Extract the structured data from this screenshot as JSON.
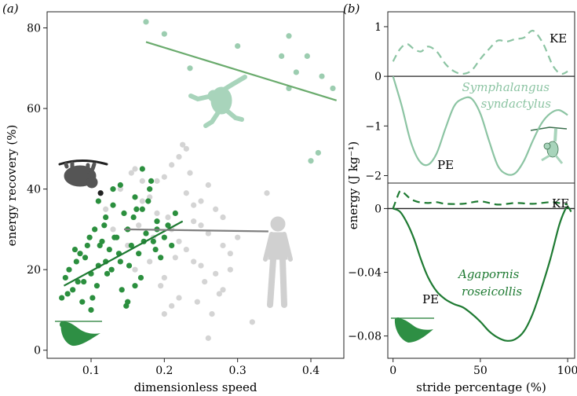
{
  "chart_data": [
    {
      "type": "scatter",
      "panel_label": "(a)",
      "xlabel": "dimensionless speed",
      "ylabel": "energy recovery (%)",
      "xlim": [
        0.04,
        0.445
      ],
      "ylim": [
        -2,
        84
      ],
      "xticks": [
        0.1,
        0.2,
        0.3,
        0.4
      ],
      "xtick_labels": [
        "0.1",
        "0.2",
        "0.3",
        "0.4"
      ],
      "yticks": [
        0,
        20,
        40,
        60,
        80
      ],
      "ytick_labels": [
        "0",
        "20",
        "40",
        "60",
        "80"
      ],
      "colors": {
        "gibbon": "#9ccdb0",
        "gibbon_line": "#6aab6d",
        "parrot": "#2b8f3e",
        "parrot_line": "#1e7a32",
        "human": "#d4d4d4",
        "human_line": "#808080",
        "sloth": "#222222"
      },
      "series": [
        {
          "name": "gibbon (Symphalangus syndactylus)",
          "x": [
            0.175,
            0.2,
            0.235,
            0.3,
            0.37,
            0.38,
            0.395,
            0.415,
            0.43,
            0.37,
            0.41,
            0.4,
            0.36
          ],
          "y": [
            81.5,
            78.5,
            70,
            75.5,
            78,
            69,
            73,
            68,
            65,
            65,
            49,
            47,
            73
          ]
        },
        {
          "name": "parrot (Agapornis roseicollis)",
          "x": [
            0.06,
            0.065,
            0.07,
            0.075,
            0.08,
            0.085,
            0.09,
            0.095,
            0.1,
            0.105,
            0.11,
            0.115,
            0.12,
            0.125,
            0.13,
            0.135,
            0.14,
            0.145,
            0.15,
            0.155,
            0.16,
            0.165,
            0.17,
            0.175,
            0.18,
            0.185,
            0.19,
            0.195,
            0.2,
            0.205,
            0.068,
            0.078,
            0.088,
            0.098,
            0.108,
            0.118,
            0.128,
            0.138,
            0.148,
            0.158,
            0.168,
            0.178,
            0.188,
            0.082,
            0.092,
            0.102,
            0.112,
            0.122,
            0.132,
            0.142,
            0.152,
            0.162,
            0.172,
            0.182,
            0.11,
            0.13,
            0.15,
            0.17,
            0.19,
            0.12,
            0.14,
            0.16,
            0.1,
            0.21,
            0.215
          ],
          "y": [
            13,
            18,
            20,
            15,
            22,
            24,
            17,
            26,
            19,
            30,
            21,
            27,
            33,
            25,
            36,
            28,
            22,
            34,
            30,
            26,
            38,
            24,
            35,
            29,
            40,
            27,
            32,
            23,
            28,
            31,
            14,
            25,
            12,
            28,
            16,
            31,
            20,
            24,
            11,
            33,
            18,
            37,
            25,
            17,
            23,
            13,
            26,
            19,
            28,
            15,
            21,
            35,
            27,
            42,
            37,
            40,
            12,
            45,
            30,
            22,
            41,
            16,
            10,
            26,
            34
          ]
        },
        {
          "name": "human",
          "x": [
            0.12,
            0.14,
            0.16,
            0.18,
            0.2,
            0.22,
            0.24,
            0.26,
            0.28,
            0.3,
            0.13,
            0.15,
            0.17,
            0.19,
            0.21,
            0.23,
            0.25,
            0.27,
            0.29,
            0.16,
            0.18,
            0.2,
            0.22,
            0.24,
            0.26,
            0.28,
            0.19,
            0.21,
            0.23,
            0.25,
            0.27,
            0.225,
            0.235,
            0.245,
            0.255,
            0.265,
            0.275,
            0.205,
            0.215,
            0.185,
            0.195,
            0.34,
            0.32,
            0.23,
            0.26,
            0.17,
            0.2,
            0.24,
            0.28,
            0.25,
            0.22,
            0.155,
            0.165,
            0.21,
            0.29
          ],
          "y": [
            35,
            40,
            45,
            38,
            43,
            48,
            36,
            41,
            33,
            28,
            30,
            26,
            37,
            42,
            46,
            39,
            31,
            35,
            24,
            20,
            22,
            18,
            27,
            32,
            29,
            15,
            34,
            30,
            25,
            21,
            19,
            51,
            44,
            12,
            17,
            9,
            14,
            33,
            23,
            28,
            16,
            39,
            7,
            50,
            3,
            42,
            9,
            22,
            26,
            37,
            13,
            44,
            31,
            11,
            20
          ]
        },
        {
          "name": "sloth",
          "x": [
            0.113
          ],
          "y": [
            39
          ]
        }
      ],
      "fits": [
        {
          "name": "gibbon fit",
          "x": [
            0.175,
            0.435
          ],
          "y": [
            76.5,
            62
          ]
        },
        {
          "name": "parrot fit",
          "x": [
            0.063,
            0.225
          ],
          "y": [
            16,
            32
          ]
        },
        {
          "name": "human fit",
          "x": [
            0.145,
            0.342
          ],
          "y": [
            30,
            29.5
          ]
        }
      ]
    },
    {
      "type": "line",
      "panel_label": "(b)",
      "xlabel": "stride percentage (%)",
      "ylabel": "energy (J kg⁻¹)",
      "xlim": [
        -3,
        104
      ],
      "xticks": [
        0,
        50,
        100
      ],
      "xtick_labels": [
        "0",
        "50",
        "100"
      ],
      "top": {
        "ylim": [
          -2.15,
          1.3
        ],
        "yticks": [
          1,
          0,
          -1,
          -2
        ],
        "ytick_labels": [
          "1",
          "0",
          "−1",
          "−2"
        ],
        "species_label_line1": "Symphalangus",
        "species_label_line2": "syndactylus",
        "ke_label": "KE",
        "pe_label": "PE",
        "color": "#8cc4a3",
        "series": [
          {
            "name": "KE",
            "style": "dashed",
            "x": [
              0,
              4,
              8,
              12,
              16,
              20,
              25,
              30,
              35,
              40,
              45,
              50,
              55,
              60,
              65,
              70,
              75,
              80,
              85,
              88,
              91,
              94,
              97,
              100
            ],
            "y": [
              0.3,
              0.55,
              0.65,
              0.55,
              0.5,
              0.6,
              0.5,
              0.25,
              0.1,
              0.05,
              0.12,
              0.35,
              0.55,
              0.72,
              0.7,
              0.75,
              0.78,
              0.92,
              0.72,
              0.5,
              0.25,
              0.1,
              0.05,
              0.1
            ]
          },
          {
            "name": "PE",
            "style": "solid",
            "x": [
              0,
              5,
              10,
              15,
              20,
              25,
              30,
              35,
              40,
              45,
              50,
              55,
              60,
              65,
              70,
              75,
              80,
              85,
              90,
              95,
              100
            ],
            "y": [
              0,
              -0.6,
              -1.3,
              -1.7,
              -1.78,
              -1.55,
              -1.05,
              -0.6,
              -0.45,
              -0.45,
              -0.75,
              -1.3,
              -1.8,
              -1.97,
              -1.95,
              -1.7,
              -1.3,
              -0.95,
              -0.75,
              -0.68,
              -0.78
            ]
          }
        ]
      },
      "bottom": {
        "ylim": [
          -0.094,
          0.016
        ],
        "yticks": [
          0,
          -0.04,
          -0.08
        ],
        "ytick_labels": [
          "0",
          "−0.04",
          "−0.08"
        ],
        "species_label_line1": "Agapornis",
        "species_label_line2": "roseicollis",
        "ke_label": "KE",
        "pe_label": "PE",
        "color": "#1e7a32",
        "series": [
          {
            "name": "KE",
            "style": "dashed",
            "x": [
              0,
              2,
              4,
              6,
              8,
              10,
              12,
              15,
              20,
              25,
              30,
              40,
              50,
              60,
              70,
              80,
              90,
              95,
              100
            ],
            "y": [
              0.0,
              0.006,
              0.011,
              0.01,
              0.008,
              0.006,
              0.005,
              0.004,
              0.0035,
              0.004,
              0.003,
              0.003,
              0.0045,
              0.0025,
              0.0035,
              0.003,
              0.004,
              0.0035,
              0.0025
            ]
          },
          {
            "name": "PE",
            "style": "solid",
            "x": [
              0,
              4,
              8,
              12,
              16,
              20,
              25,
              30,
              35,
              40,
              45,
              50,
              55,
              60,
              65,
              70,
              75,
              80,
              85,
              90,
              95,
              98,
              100,
              102
            ],
            "y": [
              0,
              -0.002,
              -0.009,
              -0.019,
              -0.032,
              -0.043,
              -0.052,
              -0.057,
              -0.06,
              -0.062,
              -0.066,
              -0.071,
              -0.077,
              -0.081,
              -0.083,
              -0.082,
              -0.077,
              -0.066,
              -0.05,
              -0.032,
              -0.011,
              -0.002,
              0.001,
              -0.002
            ]
          }
        ]
      }
    }
  ]
}
